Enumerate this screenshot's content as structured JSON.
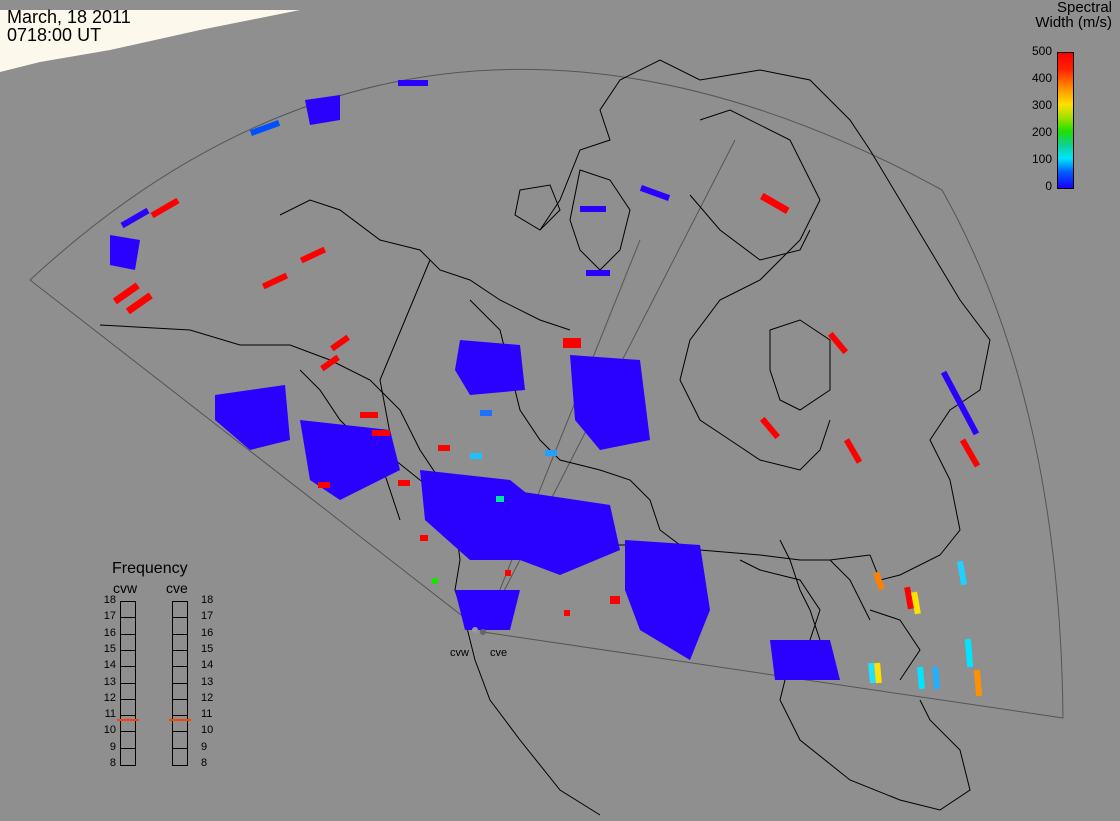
{
  "timestamp": {
    "date": "March, 18 2011",
    "time": "0718:00 UT"
  },
  "legend": {
    "title_line1": "Spectral",
    "title_line2": "Width (m/s)",
    "ticks": [
      "500",
      "400",
      "300",
      "200",
      "100",
      "0"
    ],
    "colors": {
      "low": "#1a00ff",
      "mid": "#20e000",
      "high": "#ff0000"
    }
  },
  "frequency_panel": {
    "title": "Frequency",
    "radars": [
      "cvw",
      "cve"
    ],
    "ticks": [
      "18",
      "17",
      "16",
      "15",
      "14",
      "13",
      "12",
      "11",
      "10",
      "9",
      "8"
    ],
    "current_mhz": [
      10.7,
      10.7
    ],
    "marker_color": "#ff4000"
  },
  "sites": {
    "west": "cvw",
    "east": "cve"
  },
  "map_colors": {
    "background": "#8f8f8f",
    "coastline": "#000000",
    "night_edge": "#fffbe8"
  }
}
